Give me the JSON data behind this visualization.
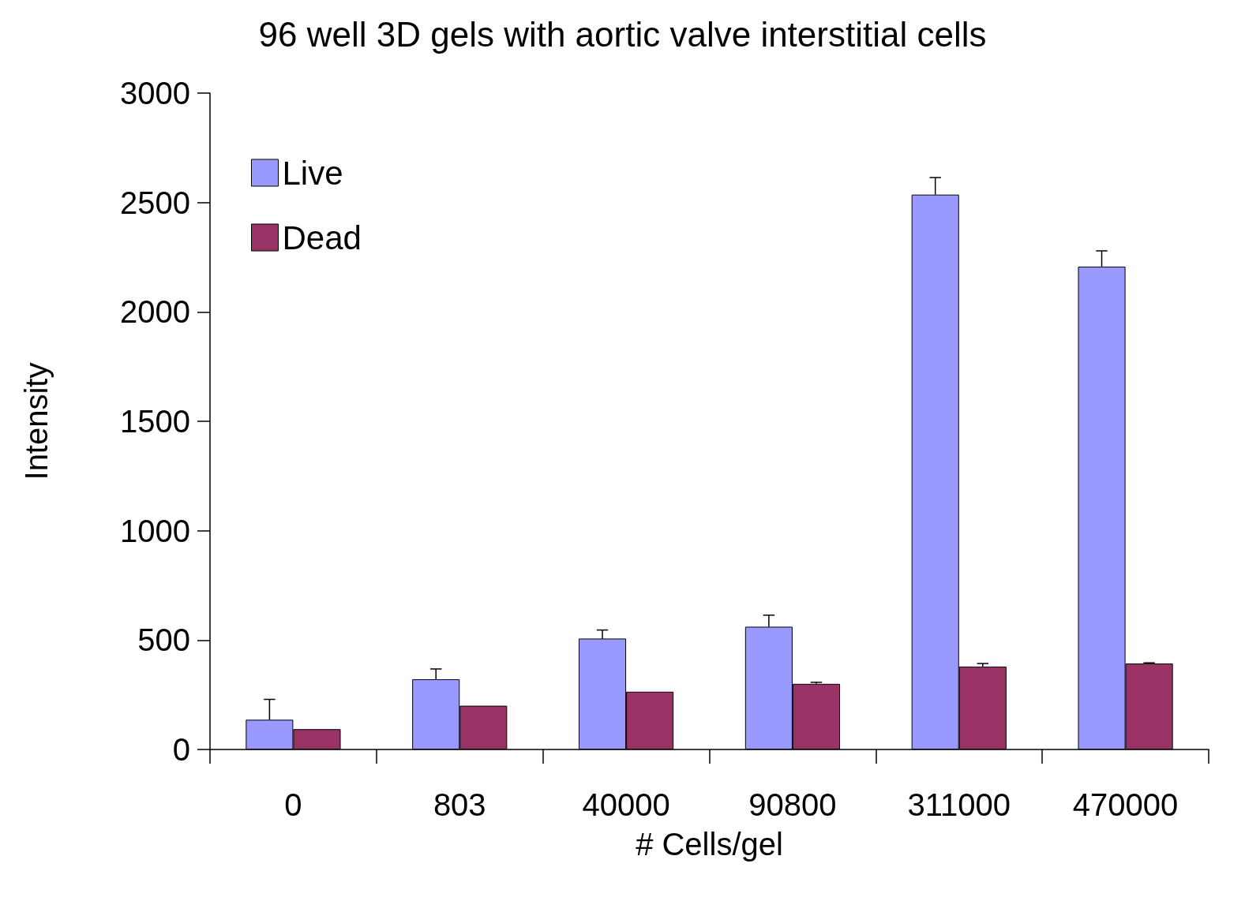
{
  "chart_data": {
    "type": "bar",
    "title": "96 well 3D gels with aortic valve interstitial cells",
    "xlabel": "# Cells/gel",
    "ylabel": "Intensity",
    "categories": [
      "0",
      "803",
      "40000",
      "90800",
      "311000",
      "470000"
    ],
    "series": [
      {
        "name": "Live",
        "color": "#9999ff",
        "values": [
          136,
          321,
          507,
          561,
          2536,
          2207
        ],
        "errors": [
          [
            136,
            229
          ],
          [
            321,
            368
          ],
          [
            507,
            546
          ],
          [
            561,
            614
          ],
          [
            2536,
            2614
          ],
          [
            2207,
            2279
          ]
        ]
      },
      {
        "name": "Dead",
        "color": "#993366",
        "values": [
          93,
          200,
          264,
          300,
          379,
          393
        ],
        "errors": [
          null,
          null,
          null,
          [
            300,
            307
          ],
          [
            379,
            393
          ],
          [
            393,
            396
          ]
        ]
      }
    ],
    "ylim": [
      0,
      3000
    ],
    "yticks": [
      0,
      500,
      1000,
      1500,
      2000,
      2500,
      3000
    ],
    "grid": false,
    "legend": "top left"
  }
}
